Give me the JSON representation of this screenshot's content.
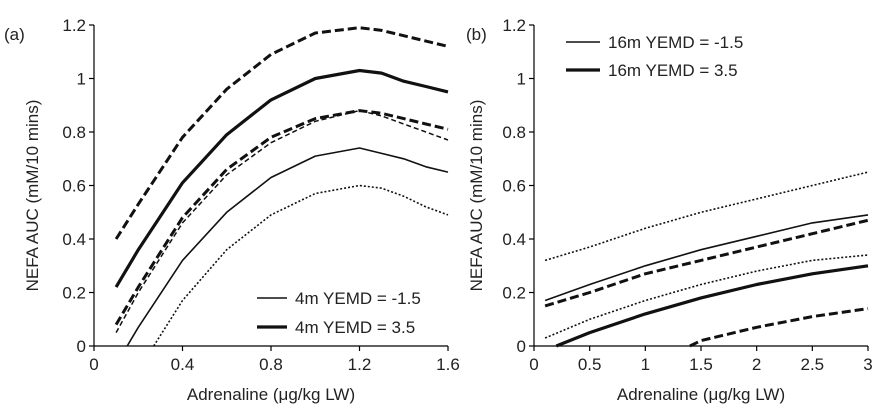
{
  "chart_data": [
    {
      "type": "line",
      "panel_label": "(a)",
      "xlabel": "Adrenaline (μg/kg LW)",
      "ylabel": "NEFA AUC (mM/10 mins)",
      "xlim": [
        0,
        1.6
      ],
      "ylim": [
        0,
        1.2
      ],
      "xticks": [
        0,
        0.4,
        0.8,
        1.2,
        1.6
      ],
      "xtick_labels": [
        "0",
        "0.4",
        "0.8",
        "1.2",
        "1.6"
      ],
      "yticks": [
        0,
        0.2,
        0.4,
        0.6,
        0.8,
        1,
        1.2
      ],
      "ytick_labels": [
        "0",
        "0.2",
        "0.4",
        "0.6",
        "0.8",
        "1",
        "1.2"
      ],
      "legend_position": "bottom-right",
      "legend": [
        {
          "label": "4m YEMD = -1.5",
          "style": "thin"
        },
        {
          "label": "4m YEMD = 3.5",
          "style": "thick"
        }
      ],
      "series": [
        {
          "style": "thick-dashed",
          "x": [
            0.1,
            0.2,
            0.4,
            0.6,
            0.8,
            1.0,
            1.2,
            1.3,
            1.4,
            1.5,
            1.6
          ],
          "y": [
            0.4,
            0.53,
            0.78,
            0.96,
            1.09,
            1.17,
            1.19,
            1.18,
            1.16,
            1.14,
            1.12
          ]
        },
        {
          "style": "thick",
          "x": [
            0.1,
            0.2,
            0.4,
            0.6,
            0.8,
            1.0,
            1.2,
            1.3,
            1.4,
            1.5,
            1.6
          ],
          "y": [
            0.22,
            0.36,
            0.61,
            0.79,
            0.92,
            1.0,
            1.03,
            1.02,
            0.99,
            0.97,
            0.95
          ]
        },
        {
          "style": "thick-dashed",
          "x": [
            0.1,
            0.2,
            0.4,
            0.6,
            0.8,
            1.0,
            1.2,
            1.3,
            1.4,
            1.5,
            1.6
          ],
          "y": [
            0.08,
            0.22,
            0.48,
            0.66,
            0.78,
            0.85,
            0.88,
            0.87,
            0.85,
            0.83,
            0.81
          ]
        },
        {
          "style": "thin-dashed",
          "x": [
            0.1,
            0.2,
            0.4,
            0.6,
            0.8,
            1.0,
            1.2,
            1.3,
            1.4,
            1.5,
            1.6
          ],
          "y": [
            0.05,
            0.2,
            0.46,
            0.64,
            0.76,
            0.84,
            0.88,
            0.86,
            0.83,
            0.8,
            0.77
          ]
        },
        {
          "style": "thin",
          "x": [
            0.15,
            0.2,
            0.4,
            0.6,
            0.8,
            1.0,
            1.2,
            1.3,
            1.4,
            1.5,
            1.6
          ],
          "y": [
            0.0,
            0.07,
            0.32,
            0.5,
            0.63,
            0.71,
            0.74,
            0.72,
            0.7,
            0.67,
            0.65
          ]
        },
        {
          "style": "thin-dotted",
          "x": [
            0.27,
            0.4,
            0.6,
            0.8,
            1.0,
            1.2,
            1.3,
            1.4,
            1.5,
            1.6
          ],
          "y": [
            0.0,
            0.17,
            0.36,
            0.49,
            0.57,
            0.6,
            0.59,
            0.56,
            0.52,
            0.49
          ]
        }
      ]
    },
    {
      "type": "line",
      "panel_label": "(b)",
      "xlabel": "Adrenaline (μg/kg LW)",
      "ylabel": "NEFA AUC (mM/10 mins)",
      "xlim": [
        0,
        3
      ],
      "ylim": [
        0,
        1.2
      ],
      "xticks": [
        0,
        0.5,
        1,
        1.5,
        2,
        2.5,
        3
      ],
      "xtick_labels": [
        "0",
        "0.5",
        "1",
        "1.5",
        "2",
        "2.5",
        "3"
      ],
      "yticks": [
        0,
        0.2,
        0.4,
        0.6,
        0.8,
        1,
        1.2
      ],
      "ytick_labels": [
        "0",
        "0.2",
        "0.4",
        "0.6",
        "0.8",
        "1",
        "1.2"
      ],
      "legend_position": "top-left",
      "legend": [
        {
          "label": "16m YEMD = -1.5",
          "style": "thin"
        },
        {
          "label": "16m YEMD = 3.5",
          "style": "thick"
        }
      ],
      "series": [
        {
          "style": "thin-dotted",
          "x": [
            0.1,
            0.5,
            1.0,
            1.5,
            2.0,
            2.5,
            3.0
          ],
          "y": [
            0.32,
            0.37,
            0.44,
            0.5,
            0.55,
            0.6,
            0.65
          ]
        },
        {
          "style": "thin",
          "x": [
            0.1,
            0.5,
            1.0,
            1.5,
            2.0,
            2.5,
            3.0
          ],
          "y": [
            0.17,
            0.23,
            0.3,
            0.36,
            0.41,
            0.46,
            0.49
          ]
        },
        {
          "style": "thick-dashed",
          "x": [
            0.1,
            0.5,
            1.0,
            1.5,
            2.0,
            2.5,
            3.0
          ],
          "y": [
            0.15,
            0.2,
            0.27,
            0.32,
            0.37,
            0.42,
            0.47
          ]
        },
        {
          "style": "thin-dotted",
          "x": [
            0.1,
            0.5,
            1.0,
            1.5,
            2.0,
            2.5,
            3.0
          ],
          "y": [
            0.03,
            0.1,
            0.17,
            0.23,
            0.28,
            0.32,
            0.34
          ]
        },
        {
          "style": "thick",
          "x": [
            0.2,
            0.5,
            1.0,
            1.5,
            2.0,
            2.5,
            3.0
          ],
          "y": [
            0.0,
            0.05,
            0.12,
            0.18,
            0.23,
            0.27,
            0.3
          ]
        },
        {
          "style": "thick-dashed",
          "x": [
            1.4,
            1.5,
            2.0,
            2.5,
            3.0
          ],
          "y": [
            0.0,
            0.02,
            0.07,
            0.11,
            0.14
          ]
        }
      ]
    }
  ]
}
